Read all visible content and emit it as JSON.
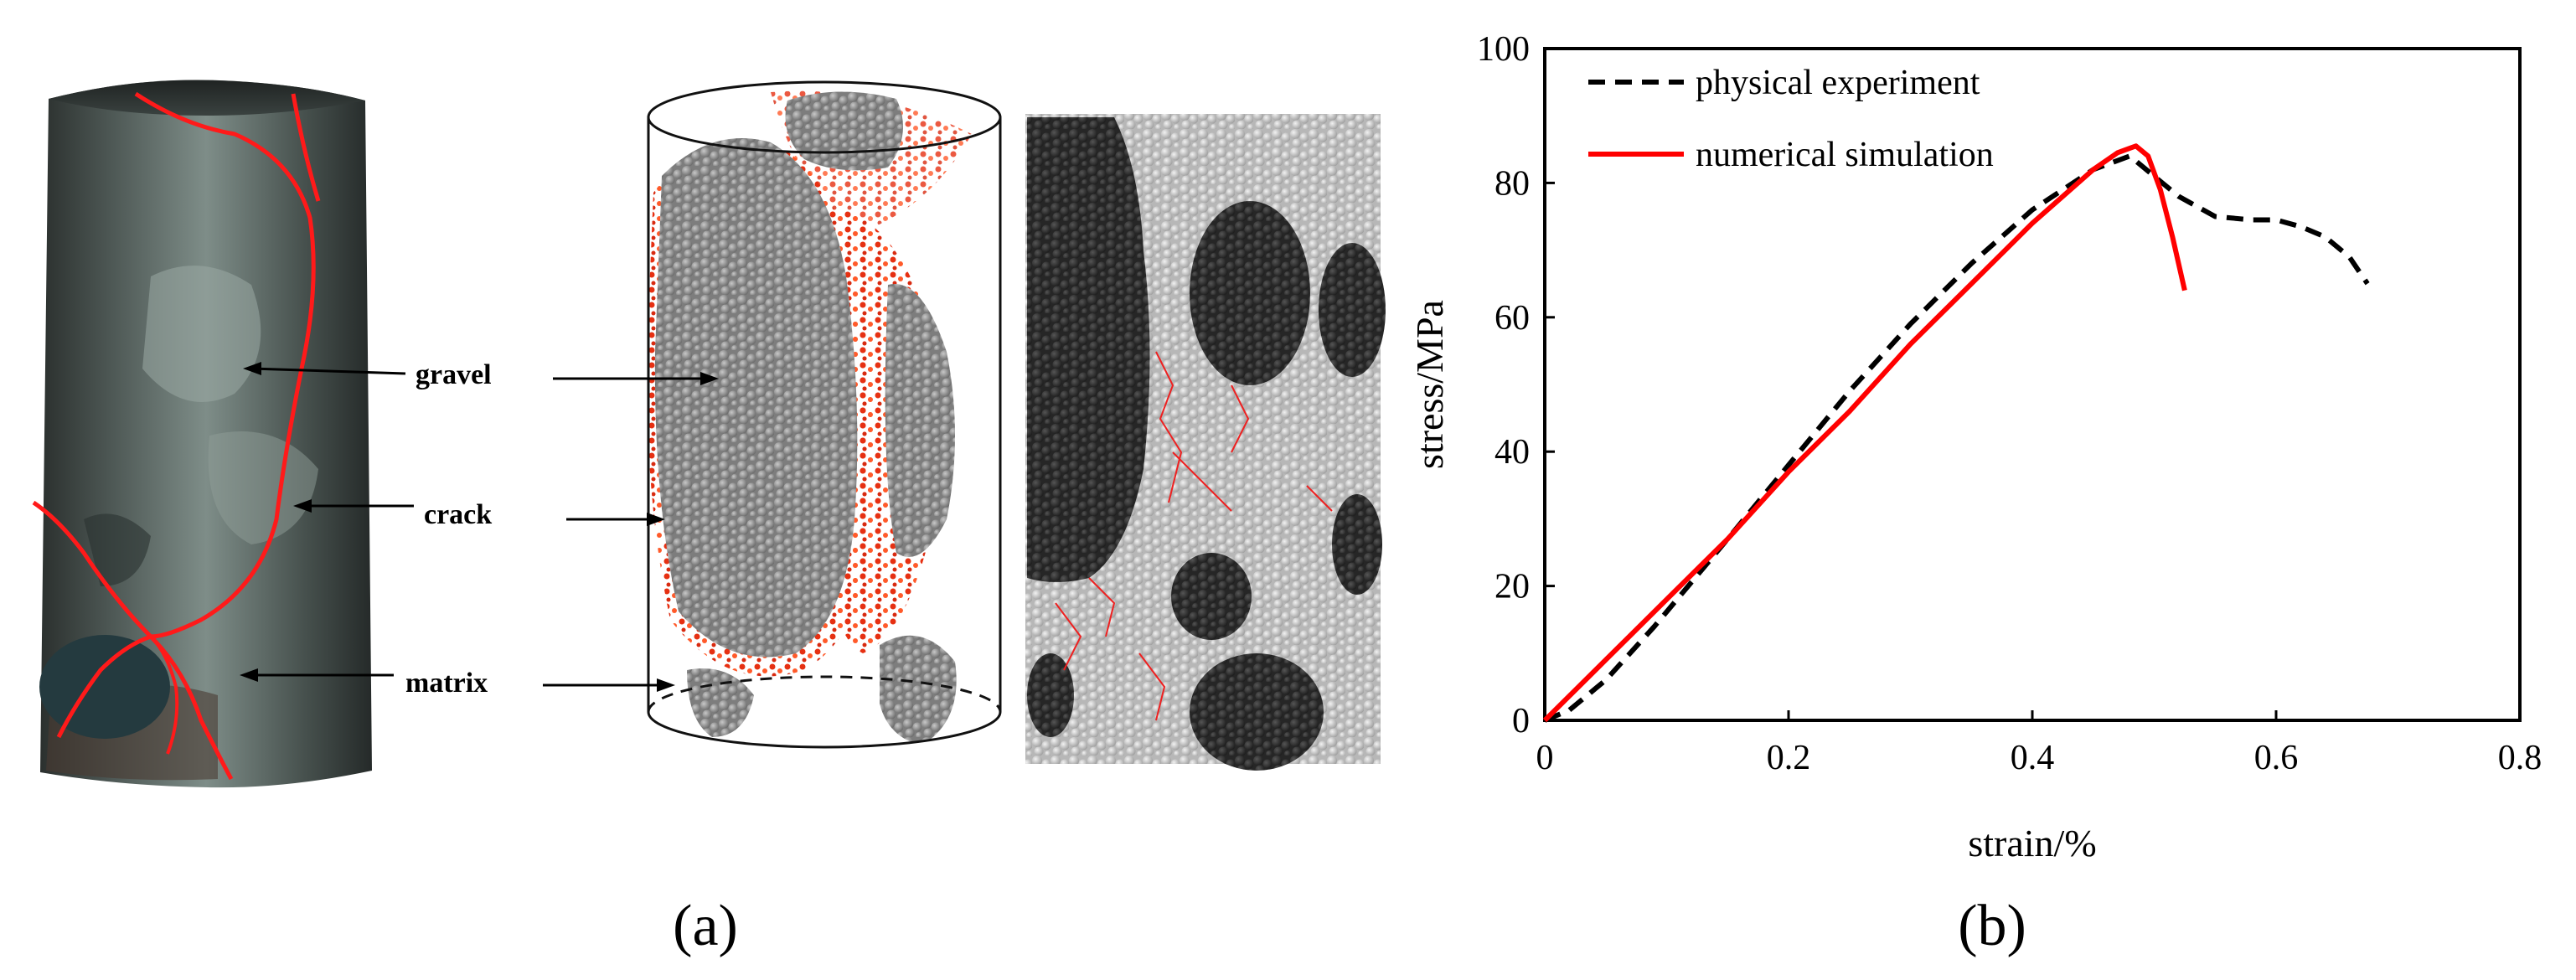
{
  "panel_a": {
    "label": "(a)",
    "annotations": [
      {
        "text": "gravel"
      },
      {
        "text": "crack"
      },
      {
        "text": "matrix"
      }
    ],
    "colors": {
      "gravel_particles": "#8a8a8a",
      "matrix_particles": "#c2c2c2",
      "gravel_dark": "#2f2f2f",
      "crack": "#e63012",
      "rock_surface": "#4e5a55"
    }
  },
  "panel_b": {
    "label": "(b)"
  },
  "chart_data": {
    "type": "line",
    "xlabel": "strain/%",
    "ylabel": "stress/MPa",
    "xlim": [
      0,
      0.8
    ],
    "ylim": [
      0,
      100
    ],
    "xticks": [
      0,
      0.2,
      0.4,
      0.6,
      0.8
    ],
    "yticks": [
      0,
      20,
      40,
      60,
      80,
      100
    ],
    "xtick_labels": [
      "0",
      "0.2",
      "0.4",
      "0.6",
      "0.8"
    ],
    "ytick_labels": [
      "0",
      "20",
      "40",
      "60",
      "80",
      "100"
    ],
    "grid": false,
    "legend": "top-left",
    "series": [
      {
        "name": "physical experiment",
        "style": "dashed",
        "color": "#000000",
        "x": [
          0,
          0.02,
          0.05,
          0.09,
          0.15,
          0.2,
          0.25,
          0.3,
          0.35,
          0.4,
          0.45,
          0.48,
          0.5,
          0.52,
          0.55,
          0.58,
          0.6,
          0.62,
          0.64,
          0.66,
          0.675
        ],
        "y": [
          0,
          1.5,
          6,
          14,
          27,
          38,
          49,
          59,
          68,
          76,
          82,
          84,
          81,
          78,
          75,
          74.5,
          74.5,
          73.5,
          72,
          69,
          65
        ]
      },
      {
        "name": "numerical simulation",
        "style": "solid",
        "color": "#ff0000",
        "x": [
          0,
          0.05,
          0.1,
          0.15,
          0.2,
          0.25,
          0.3,
          0.35,
          0.4,
          0.45,
          0.47,
          0.485,
          0.495,
          0.505,
          0.515,
          0.525
        ],
        "y": [
          0,
          9,
          18,
          27,
          37,
          46,
          56,
          65,
          74,
          82,
          84.5,
          85.5,
          84,
          79,
          72,
          64
        ]
      }
    ]
  }
}
